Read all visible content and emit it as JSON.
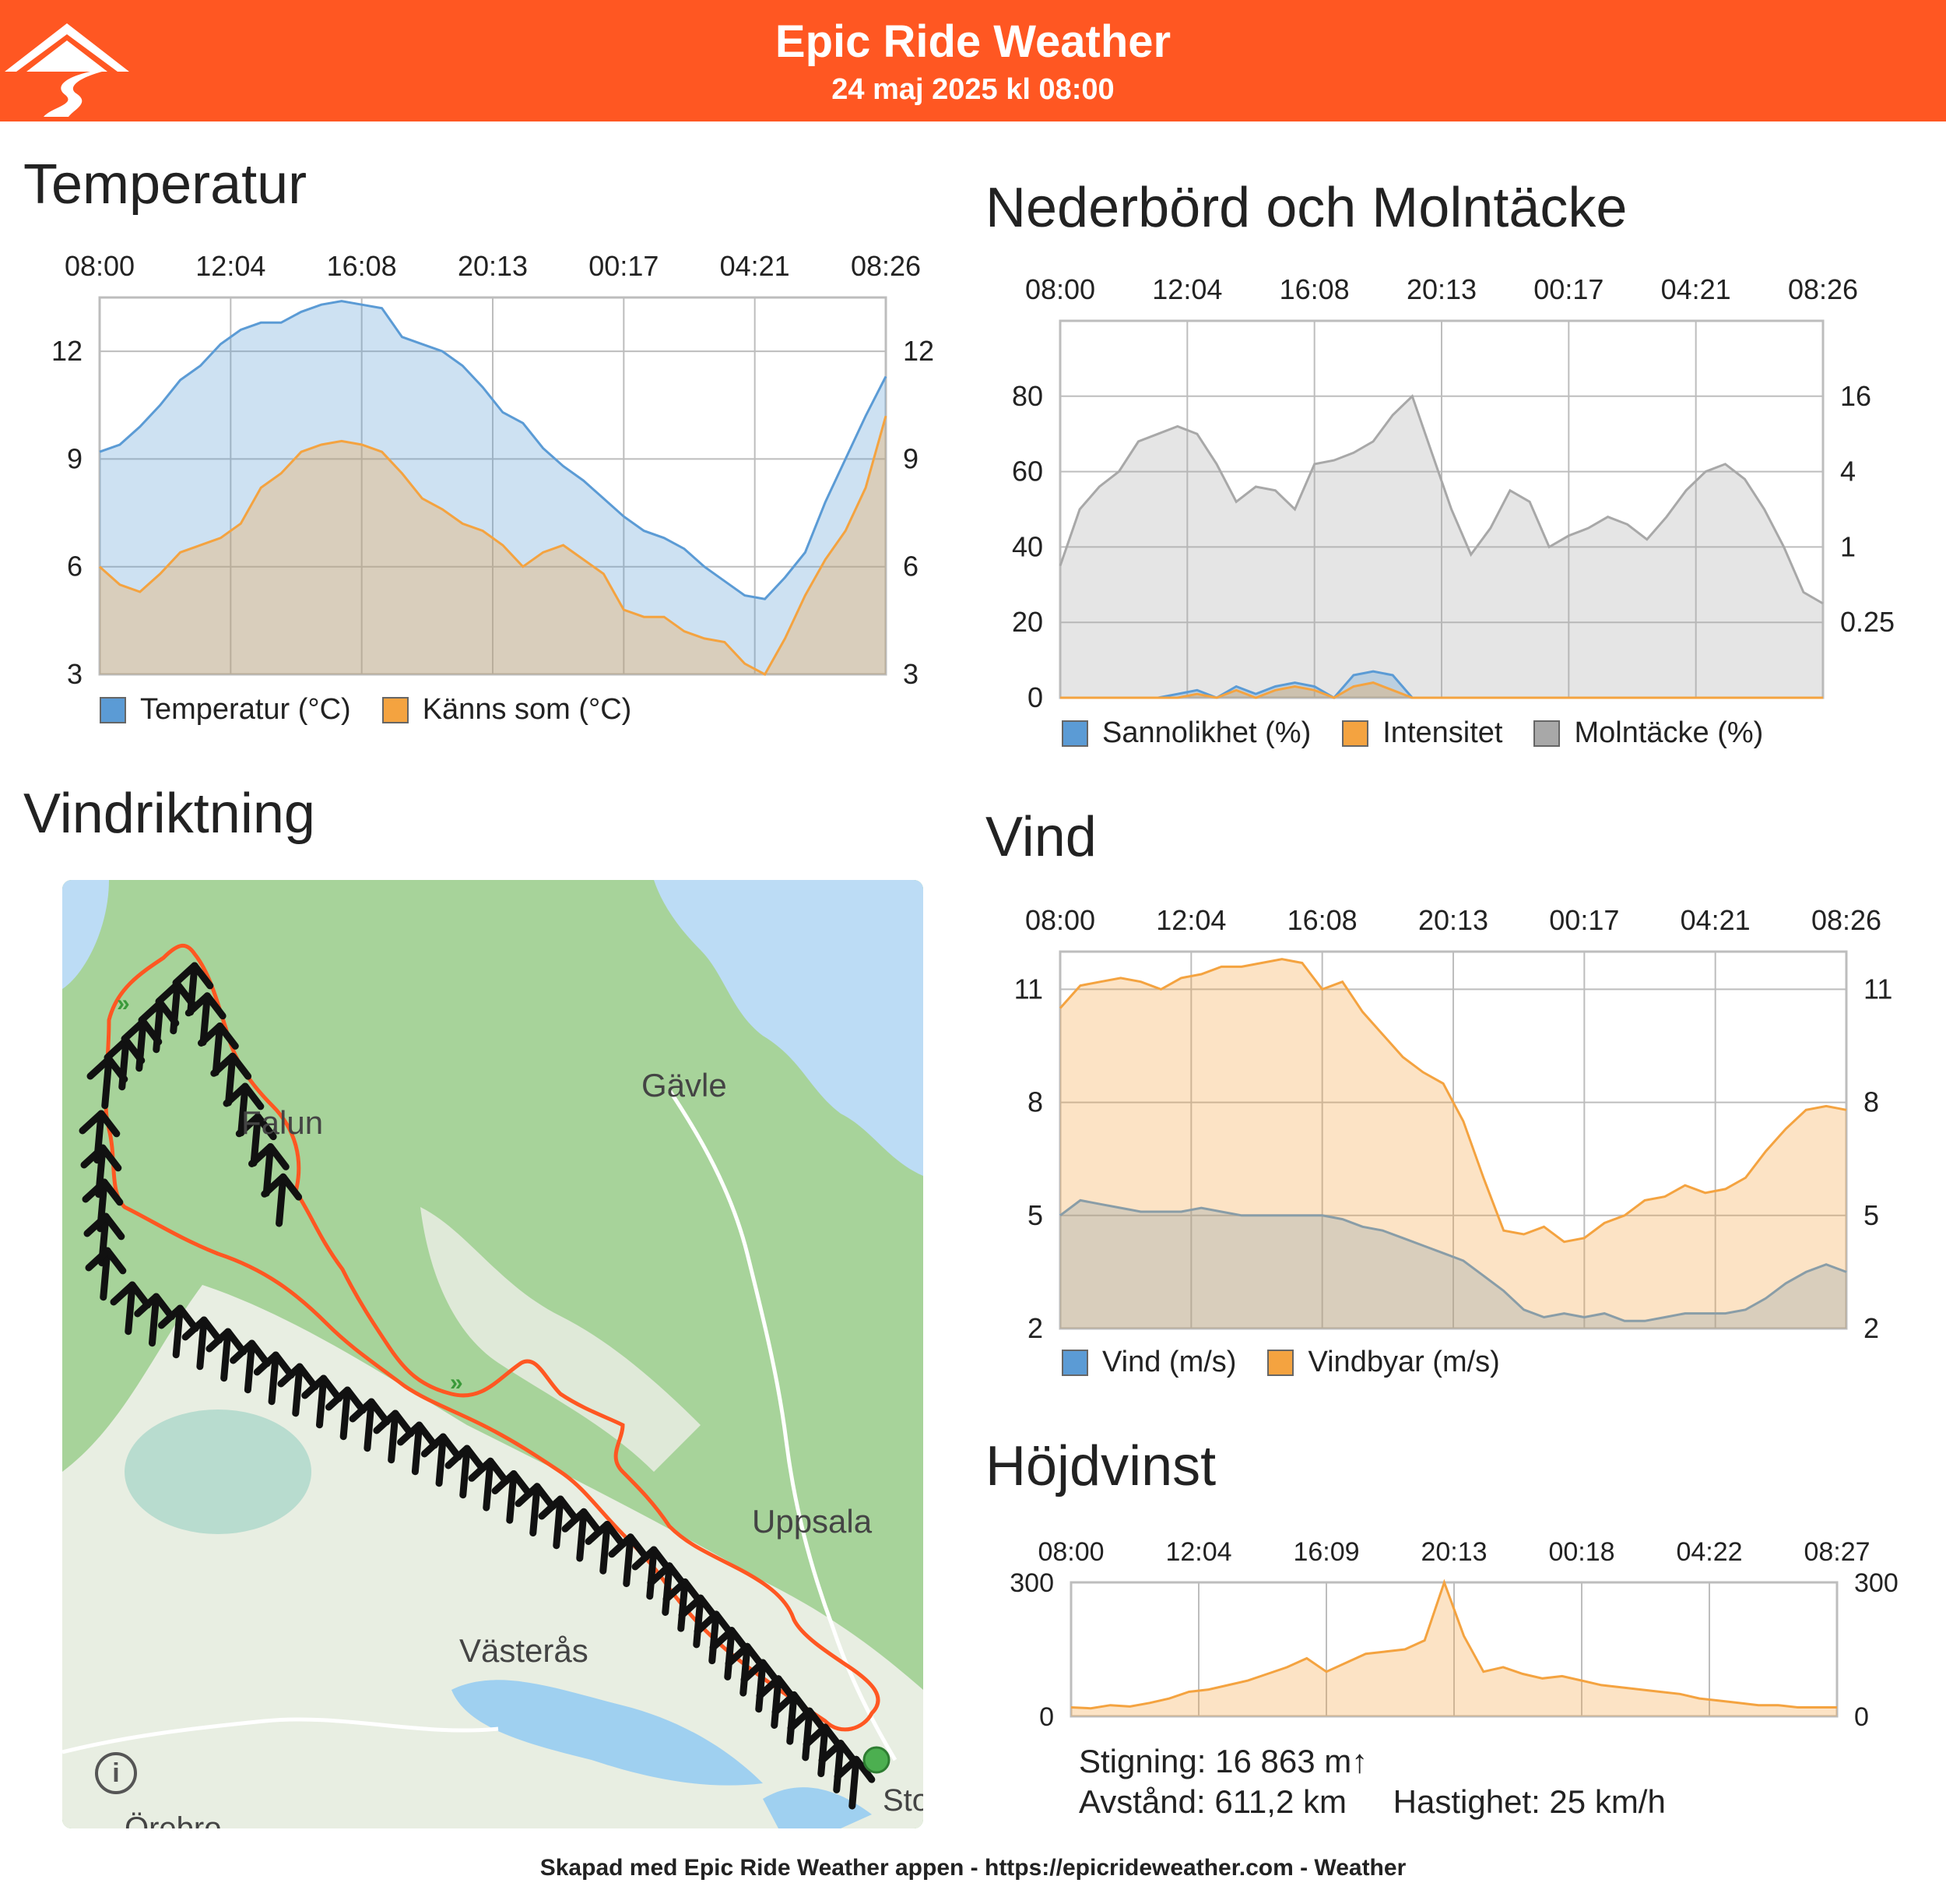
{
  "header": {
    "title": "Epic Ride Weather",
    "subtitle": "24 maj 2025 kl 08:00"
  },
  "colors": {
    "brand": "#ff5722",
    "series_blue": "#5b9bd5",
    "series_orange": "#f4a340",
    "series_gray": "#a8a8a8",
    "route": "#ff5722"
  },
  "sections": {
    "temperature": "Temperatur",
    "precipitation": "Nederbörd och Molntäcke",
    "wind_direction": "Vindriktning",
    "wind": "Vind",
    "elevation": "Höjdvinst"
  },
  "map": {
    "labels": [
      "Gävle",
      "Falun",
      "Uppsala",
      "Västerås",
      "Örebro",
      "Stock"
    ],
    "info_icon": "info-icon"
  },
  "stats": {
    "climb": "Stigning: 16 863 m↑",
    "distance": "Avstånd: 611,2 km",
    "speed": "Hastighet: 25 km/h"
  },
  "footer": "Skapad med Epic Ride Weather appen - https://epicrideweather.com -  Weather",
  "chart_data": [
    {
      "id": "temperature",
      "type": "area",
      "x_ticks": [
        "08:00",
        "12:04",
        "16:08",
        "20:13",
        "00:17",
        "04:21",
        "08:26"
      ],
      "y_left_ticks": [
        "3",
        "6",
        "9",
        "12"
      ],
      "y_right_ticks": [
        "3",
        "6",
        "9",
        "12"
      ],
      "ylim": [
        3,
        13.5
      ],
      "series": [
        {
          "name": "Temperatur (°C)",
          "color": "#5b9bd5",
          "values": [
            9.2,
            9.4,
            9.9,
            10.5,
            11.2,
            11.6,
            12.2,
            12.6,
            12.8,
            12.8,
            13.1,
            13.3,
            13.4,
            13.3,
            13.2,
            12.4,
            12.2,
            12.0,
            11.6,
            11.0,
            10.3,
            10.0,
            9.3,
            8.8,
            8.4,
            7.9,
            7.4,
            7.0,
            6.8,
            6.5,
            6.0,
            5.6,
            5.2,
            5.1,
            5.7,
            6.4,
            7.8,
            9.0,
            10.2,
            11.3
          ]
        },
        {
          "name": "Känns som (°C)",
          "color": "#f4a340",
          "values": [
            6.0,
            5.5,
            5.3,
            5.8,
            6.4,
            6.6,
            6.8,
            7.2,
            8.2,
            8.6,
            9.2,
            9.4,
            9.5,
            9.4,
            9.2,
            8.6,
            7.9,
            7.6,
            7.2,
            7.0,
            6.6,
            6.0,
            6.4,
            6.6,
            6.2,
            5.8,
            4.8,
            4.6,
            4.6,
            4.2,
            4.0,
            3.9,
            3.3,
            3.0,
            4.0,
            5.2,
            6.2,
            7.0,
            8.2,
            10.2
          ]
        }
      ]
    },
    {
      "id": "precipitation",
      "type": "area",
      "x_ticks": [
        "08:00",
        "12:04",
        "16:08",
        "20:13",
        "00:17",
        "04:21",
        "08:26"
      ],
      "y_left_ticks": [
        "0",
        "20",
        "40",
        "60",
        "80"
      ],
      "y_right_ticks": [
        "0.25",
        "1",
        "4",
        "16"
      ],
      "ylim": [
        0,
        100
      ],
      "series": [
        {
          "name": "Sannolikhet (%)",
          "color": "#5b9bd5",
          "values": [
            0,
            0,
            0,
            0,
            0,
            0,
            1,
            2,
            0,
            3,
            1,
            3,
            4,
            3,
            0,
            6,
            7,
            6,
            0,
            0,
            0,
            0,
            0,
            0,
            0,
            0,
            0,
            0,
            0,
            0,
            0,
            0,
            0,
            0,
            0,
            0,
            0,
            0,
            0,
            0
          ]
        },
        {
          "name": "Intensitet",
          "color": "#f4a340",
          "values": [
            0,
            0,
            0,
            0,
            0,
            0,
            0,
            1,
            0,
            2,
            0,
            2,
            3,
            2,
            0,
            3,
            4,
            2,
            0,
            0,
            0,
            0,
            0,
            0,
            0,
            0,
            0,
            0,
            0,
            0,
            0,
            0,
            0,
            0,
            0,
            0,
            0,
            0,
            0,
            0
          ]
        },
        {
          "name": "Molntäcke (%)",
          "color": "#a8a8a8",
          "values": [
            35,
            50,
            56,
            60,
            68,
            70,
            72,
            70,
            62,
            52,
            56,
            55,
            50,
            62,
            63,
            65,
            68,
            75,
            80,
            65,
            50,
            38,
            45,
            55,
            52,
            40,
            43,
            45,
            48,
            46,
            42,
            48,
            55,
            60,
            62,
            58,
            50,
            40,
            28,
            25
          ]
        }
      ]
    },
    {
      "id": "wind",
      "type": "area",
      "x_ticks": [
        "08:00",
        "12:04",
        "16:08",
        "20:13",
        "00:17",
        "04:21",
        "08:26"
      ],
      "y_left_ticks": [
        "2",
        "5",
        "8",
        "11"
      ],
      "y_right_ticks": [
        "2",
        "5",
        "8",
        "11"
      ],
      "ylim": [
        2,
        12
      ],
      "series": [
        {
          "name": "Vind (m/s)",
          "color": "#5b9bd5",
          "values": [
            5.0,
            5.4,
            5.3,
            5.2,
            5.1,
            5.1,
            5.1,
            5.2,
            5.1,
            5.0,
            5.0,
            5.0,
            5.0,
            5.0,
            4.9,
            4.7,
            4.6,
            4.4,
            4.2,
            4.0,
            3.8,
            3.4,
            3.0,
            2.5,
            2.3,
            2.4,
            2.3,
            2.4,
            2.2,
            2.2,
            2.3,
            2.4,
            2.4,
            2.4,
            2.5,
            2.8,
            3.2,
            3.5,
            3.7,
            3.5
          ]
        },
        {
          "name": "Vindbyar (m/s)",
          "color": "#f4a340",
          "values": [
            10.5,
            11.1,
            11.2,
            11.3,
            11.2,
            11.0,
            11.3,
            11.4,
            11.6,
            11.6,
            11.7,
            11.8,
            11.7,
            11.0,
            11.2,
            10.4,
            9.8,
            9.2,
            8.8,
            8.5,
            7.5,
            6.0,
            4.6,
            4.5,
            4.7,
            4.3,
            4.4,
            4.8,
            5.0,
            5.4,
            5.5,
            5.8,
            5.6,
            5.7,
            6.0,
            6.7,
            7.3,
            7.8,
            7.9,
            7.8
          ]
        }
      ]
    },
    {
      "id": "elevation",
      "type": "area",
      "x_ticks": [
        "08:00",
        "12:04",
        "16:09",
        "20:13",
        "00:18",
        "04:22",
        "08:27"
      ],
      "y_left_ticks": [
        "0",
        "300"
      ],
      "y_right_ticks": [
        "0",
        "300"
      ],
      "ylim": [
        0,
        300
      ],
      "series": [
        {
          "name": "Höjdvinst",
          "color": "#f4a340",
          "values": [
            20,
            18,
            25,
            22,
            30,
            40,
            55,
            60,
            70,
            80,
            95,
            110,
            130,
            100,
            120,
            140,
            145,
            150,
            170,
            300,
            180,
            100,
            110,
            95,
            85,
            90,
            80,
            70,
            65,
            60,
            55,
            50,
            40,
            35,
            30,
            25,
            25,
            20,
            20,
            20
          ]
        }
      ]
    }
  ]
}
